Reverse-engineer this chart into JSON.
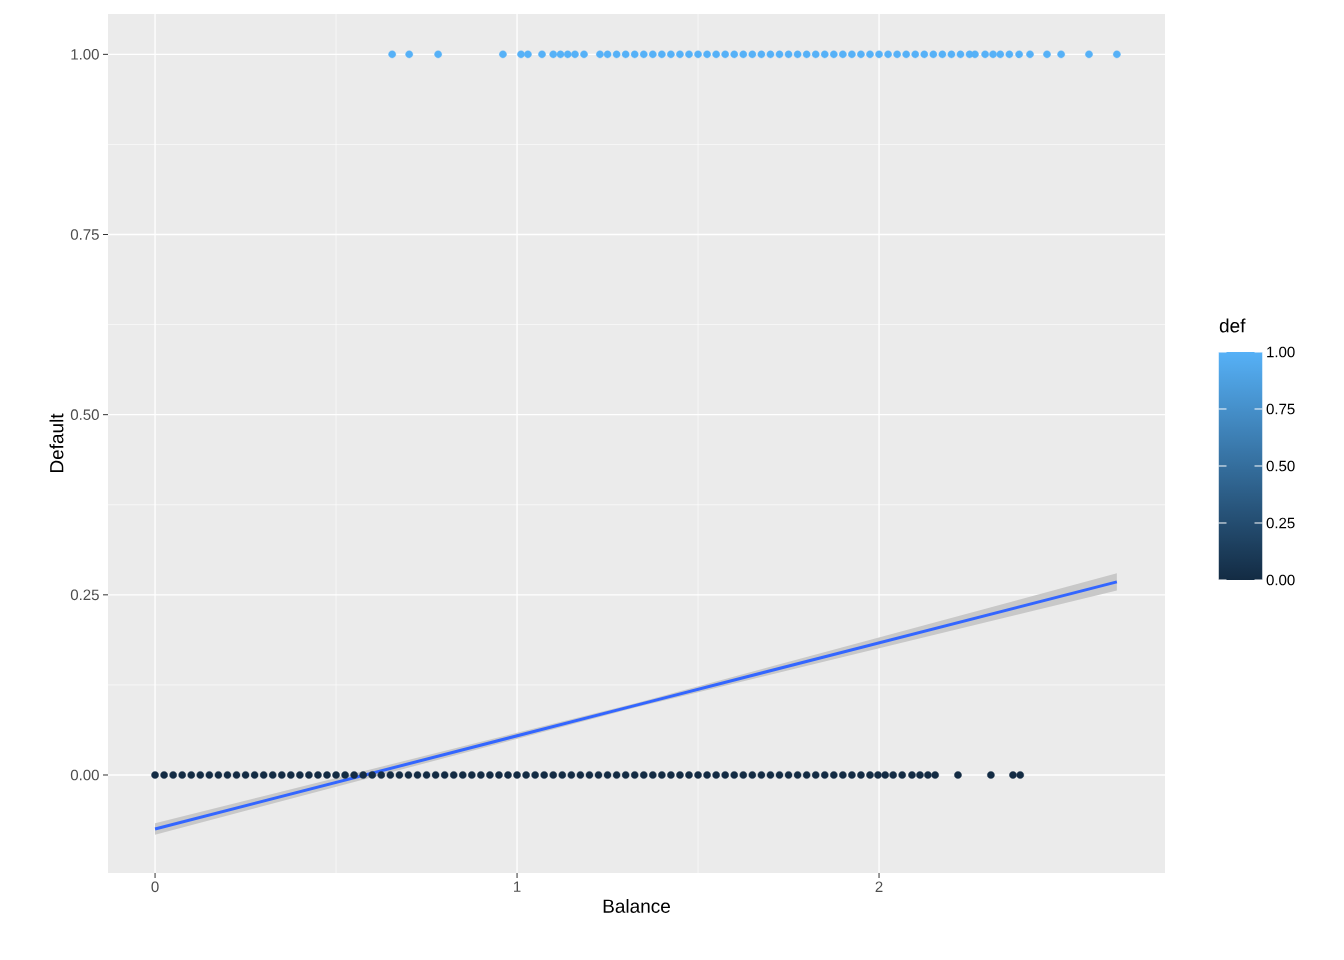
{
  "chart_data": {
    "type": "scatter",
    "xlabel": "Balance",
    "ylabel": "Default",
    "legend_title": "def",
    "xlim": [
      -0.13,
      2.79
    ],
    "ylim": [
      -0.136,
      1.056
    ],
    "xticks": [
      0,
      1,
      2
    ],
    "yticks": [
      {
        "value": 0,
        "label": "0.00"
      },
      {
        "value": 0.25,
        "label": "0.25"
      },
      {
        "value": 0.5,
        "label": "0.50"
      },
      {
        "value": 0.75,
        "label": "0.75"
      },
      {
        "value": 1,
        "label": "1.00"
      }
    ],
    "clim": [
      0,
      1
    ],
    "cticks": [
      {
        "value": 0,
        "label": "0.00"
      },
      {
        "value": 0.25,
        "label": "0.25"
      },
      {
        "value": 0.5,
        "label": "0.50"
      },
      {
        "value": 0.75,
        "label": "0.75"
      },
      {
        "value": 1,
        "label": "1.00"
      }
    ],
    "grid": true,
    "series": [
      {
        "x": [
          0.655,
          0.702,
          0.782,
          0.961,
          1.011,
          1.03,
          1.069,
          1.1,
          1.12,
          1.14,
          1.16,
          1.185,
          1.229,
          1.25,
          1.275,
          1.3,
          1.325,
          1.35,
          1.375,
          1.4,
          1.425,
          1.45,
          1.475,
          1.5,
          1.525,
          1.55,
          1.575,
          1.6,
          1.625,
          1.65,
          1.675,
          1.7,
          1.725,
          1.75,
          1.775,
          1.8,
          1.825,
          1.85,
          1.875,
          1.9,
          1.925,
          1.95,
          1.975,
          2.0,
          2.025,
          2.05,
          2.075,
          2.1,
          2.125,
          2.15,
          2.175,
          2.2,
          2.225,
          2.25,
          2.265,
          2.293,
          2.315,
          2.335,
          2.36,
          2.387,
          2.417,
          2.464,
          2.503,
          2.58,
          2.657
        ],
        "values": [
          1,
          1,
          1,
          1,
          1,
          1,
          1,
          1,
          1,
          1,
          1,
          1,
          1,
          1,
          1,
          1,
          1,
          1,
          1,
          1,
          1,
          1,
          1,
          1,
          1,
          1,
          1,
          1,
          1,
          1,
          1,
          1,
          1,
          1,
          1,
          1,
          1,
          1,
          1,
          1,
          1,
          1,
          1,
          1,
          1,
          1,
          1,
          1,
          1,
          1,
          1,
          1,
          1,
          1,
          1,
          1,
          1,
          1,
          1,
          1,
          1,
          1,
          1,
          1,
          1
        ],
        "cvalues": [
          1,
          1,
          1,
          1,
          1,
          1,
          1,
          1,
          1,
          1,
          1,
          1,
          1,
          1,
          1,
          1,
          1,
          1,
          1,
          1,
          1,
          1,
          1,
          1,
          1,
          1,
          1,
          1,
          1,
          1,
          1,
          1,
          1,
          1,
          1,
          1,
          1,
          1,
          1,
          1,
          1,
          1,
          1,
          1,
          1,
          1,
          1,
          1,
          1,
          1,
          1,
          1,
          1,
          1,
          1,
          1,
          1,
          1,
          1,
          1,
          1,
          1,
          1,
          1,
          1
        ]
      },
      {
        "x": [
          0,
          0.025,
          0.05,
          0.075,
          0.1,
          0.125,
          0.15,
          0.175,
          0.2,
          0.225,
          0.25,
          0.275,
          0.3,
          0.325,
          0.35,
          0.375,
          0.4,
          0.425,
          0.45,
          0.475,
          0.5,
          0.525,
          0.55,
          0.575,
          0.6,
          0.625,
          0.65,
          0.675,
          0.7,
          0.725,
          0.75,
          0.775,
          0.8,
          0.825,
          0.85,
          0.875,
          0.9,
          0.925,
          0.95,
          0.975,
          1,
          1.025,
          1.05,
          1.075,
          1.1,
          1.125,
          1.15,
          1.175,
          1.2,
          1.225,
          1.25,
          1.275,
          1.3,
          1.325,
          1.35,
          1.375,
          1.4,
          1.425,
          1.45,
          1.475,
          1.5,
          1.525,
          1.55,
          1.575,
          1.6,
          1.625,
          1.65,
          1.675,
          1.7,
          1.725,
          1.75,
          1.775,
          1.8,
          1.825,
          1.85,
          1.875,
          1.9,
          1.925,
          1.95,
          1.975,
          1.997,
          2.017,
          2.039,
          2.064,
          2.091,
          2.113,
          2.135,
          2.155,
          2.218,
          2.309,
          2.37,
          2.39
        ],
        "values": [
          0,
          0,
          0,
          0,
          0,
          0,
          0,
          0,
          0,
          0,
          0,
          0,
          0,
          0,
          0,
          0,
          0,
          0,
          0,
          0,
          0,
          0,
          0,
          0,
          0,
          0,
          0,
          0,
          0,
          0,
          0,
          0,
          0,
          0,
          0,
          0,
          0,
          0,
          0,
          0,
          0,
          0,
          0,
          0,
          0,
          0,
          0,
          0,
          0,
          0,
          0,
          0,
          0,
          0,
          0,
          0,
          0,
          0,
          0,
          0,
          0,
          0,
          0,
          0,
          0,
          0,
          0,
          0,
          0,
          0,
          0,
          0,
          0,
          0,
          0,
          0,
          0,
          0,
          0,
          0,
          0,
          0,
          0,
          0,
          0,
          0,
          0,
          0,
          0,
          0,
          0,
          0
        ],
        "cvalues": [
          0,
          0,
          0,
          0,
          0,
          0,
          0,
          0,
          0,
          0,
          0,
          0,
          0,
          0,
          0,
          0,
          0,
          0,
          0,
          0,
          0,
          0,
          0,
          0,
          0,
          0,
          0,
          0,
          0,
          0,
          0,
          0,
          0,
          0,
          0,
          0,
          0,
          0,
          0,
          0,
          0,
          0,
          0,
          0,
          0,
          0,
          0,
          0,
          0,
          0,
          0,
          0,
          0,
          0,
          0,
          0,
          0,
          0,
          0,
          0,
          0,
          0,
          0,
          0,
          0,
          0,
          0,
          0,
          0,
          0,
          0,
          0,
          0,
          0,
          0,
          0,
          0,
          0,
          0,
          0,
          0,
          0,
          0,
          0,
          0,
          0,
          0,
          0,
          0,
          0,
          0,
          0
        ]
      },
      {
        "type": "line",
        "color": "#3366ff",
        "x": [
          0,
          1.33,
          2.657
        ],
        "values": [
          -0.075,
          0.097,
          0.268
        ],
        "lower": [
          -0.083,
          0.094,
          0.256
        ],
        "upper": [
          -0.067,
          0.1,
          0.28
        ]
      }
    ]
  }
}
